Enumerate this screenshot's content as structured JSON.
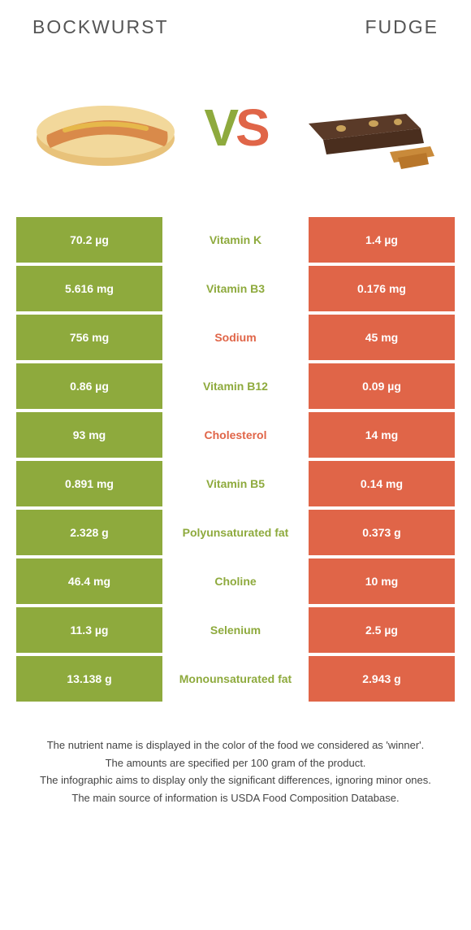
{
  "colors": {
    "green": "#8eaa3d",
    "orange": "#e06548",
    "white": "#ffffff",
    "text": "#555555"
  },
  "header": {
    "left_title": "BOCKWURST",
    "right_title": "FUDGE"
  },
  "vs": {
    "v": "V",
    "s": "S"
  },
  "rows": [
    {
      "left": "70.2 µg",
      "label": "Vitamin K",
      "right": "1.4 µg",
      "left_bg": "#8eaa3d",
      "right_bg": "#e06548",
      "label_color": "#8eaa3d"
    },
    {
      "left": "5.616 mg",
      "label": "Vitamin B3",
      "right": "0.176 mg",
      "left_bg": "#8eaa3d",
      "right_bg": "#e06548",
      "label_color": "#8eaa3d"
    },
    {
      "left": "756 mg",
      "label": "Sodium",
      "right": "45 mg",
      "left_bg": "#8eaa3d",
      "right_bg": "#e06548",
      "label_color": "#e06548"
    },
    {
      "left": "0.86 µg",
      "label": "Vitamin B12",
      "right": "0.09 µg",
      "left_bg": "#8eaa3d",
      "right_bg": "#e06548",
      "label_color": "#8eaa3d"
    },
    {
      "left": "93 mg",
      "label": "Cholesterol",
      "right": "14 mg",
      "left_bg": "#8eaa3d",
      "right_bg": "#e06548",
      "label_color": "#e06548"
    },
    {
      "left": "0.891 mg",
      "label": "Vitamin B5",
      "right": "0.14 mg",
      "left_bg": "#8eaa3d",
      "right_bg": "#e06548",
      "label_color": "#8eaa3d"
    },
    {
      "left": "2.328 g",
      "label": "Polyunsaturated fat",
      "right": "0.373 g",
      "left_bg": "#8eaa3d",
      "right_bg": "#e06548",
      "label_color": "#8eaa3d"
    },
    {
      "left": "46.4 mg",
      "label": "Choline",
      "right": "10 mg",
      "left_bg": "#8eaa3d",
      "right_bg": "#e06548",
      "label_color": "#8eaa3d"
    },
    {
      "left": "11.3 µg",
      "label": "Selenium",
      "right": "2.5 µg",
      "left_bg": "#8eaa3d",
      "right_bg": "#e06548",
      "label_color": "#8eaa3d"
    },
    {
      "left": "13.138 g",
      "label": "Monounsaturated fat",
      "right": "2.943 g",
      "left_bg": "#8eaa3d",
      "right_bg": "#e06548",
      "label_color": "#8eaa3d"
    }
  ],
  "footer": {
    "line1": "The nutrient name is displayed in the color of the food we considered as 'winner'.",
    "line2": "The amounts are specified per 100 gram of the product.",
    "line3": "The infographic aims to display only the significant differences, ignoring minor ones.",
    "line4": "The main source of information is USDA Food Composition Database."
  }
}
